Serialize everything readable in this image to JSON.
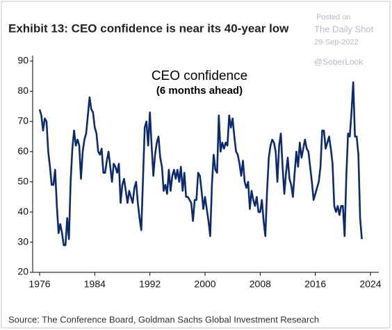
{
  "chart_data": {
    "type": "line",
    "title": "Exhibit 13: CEO confidence is near its 40-year low",
    "annotations": [
      "CEO confidence",
      "(6 months ahead)"
    ],
    "source": "Source: The Conference Board, Goldman Sachs Global Investment Research",
    "watermark": [
      "Posted on",
      "The Daily Shot",
      "29-Sep-2022",
      "@SoberLook"
    ],
    "color": "#0c2a6e",
    "xlim": [
      1976,
      2024
    ],
    "xticks": [
      1976,
      1984,
      1992,
      2000,
      2008,
      2016,
      2024
    ],
    "ylim": [
      20,
      90
    ],
    "yticks": [
      20,
      30,
      40,
      50,
      60,
      70,
      80,
      90
    ],
    "x": [
      1976,
      1976.25,
      1976.5,
      1976.75,
      1977,
      1977.25,
      1977.5,
      1977.75,
      1978,
      1978.25,
      1978.5,
      1978.75,
      1979,
      1979.25,
      1979.5,
      1979.75,
      1980,
      1980.25,
      1980.5,
      1980.75,
      1981,
      1981.25,
      1981.5,
      1981.75,
      1982,
      1982.25,
      1982.5,
      1982.75,
      1983,
      1983.25,
      1983.5,
      1983.75,
      1984,
      1984.25,
      1984.5,
      1984.75,
      1985,
      1985.25,
      1985.5,
      1985.75,
      1986,
      1986.25,
      1986.5,
      1986.75,
      1987,
      1987.25,
      1987.5,
      1987.75,
      1988,
      1988.25,
      1988.5,
      1988.75,
      1989,
      1989.25,
      1989.5,
      1989.75,
      1990,
      1990.25,
      1990.5,
      1990.75,
      1991,
      1991.25,
      1991.5,
      1991.75,
      1992,
      1992.25,
      1992.5,
      1992.75,
      1993,
      1993.25,
      1993.5,
      1993.75,
      1994,
      1994.25,
      1994.5,
      1994.75,
      1995,
      1995.25,
      1995.5,
      1995.75,
      1996,
      1996.25,
      1996.5,
      1996.75,
      1997,
      1997.25,
      1997.5,
      1997.75,
      1998,
      1998.25,
      1998.5,
      1998.75,
      1999,
      1999.25,
      1999.5,
      1999.75,
      2000,
      2000.25,
      2000.5,
      2000.75,
      2001,
      2001.25,
      2001.5,
      2001.75,
      2002,
      2002.25,
      2002.5,
      2002.75,
      2003,
      2003.25,
      2003.5,
      2003.75,
      2004,
      2004.25,
      2004.5,
      2004.75,
      2005,
      2005.25,
      2005.5,
      2005.75,
      2006,
      2006.25,
      2006.5,
      2006.75,
      2007,
      2007.25,
      2007.5,
      2007.75,
      2008,
      2008.25,
      2008.5,
      2008.75,
      2009,
      2009.25,
      2009.5,
      2009.75,
      2010,
      2010.25,
      2010.5,
      2010.75,
      2011,
      2011.25,
      2011.5,
      2011.75,
      2012,
      2012.25,
      2012.5,
      2012.75,
      2013,
      2013.25,
      2013.5,
      2013.75,
      2014,
      2014.25,
      2014.5,
      2014.75,
      2015,
      2015.25,
      2015.5,
      2015.75,
      2016,
      2016.25,
      2016.5,
      2016.75,
      2017,
      2017.25,
      2017.5,
      2017.75,
      2018,
      2018.25,
      2018.5,
      2018.75,
      2019,
      2019.25,
      2019.5,
      2019.75,
      2020,
      2020.25,
      2020.5,
      2020.75,
      2021,
      2021.25,
      2021.5,
      2021.75,
      2022,
      2022.25,
      2022.5,
      2022.75
    ],
    "values": [
      74,
      72,
      67,
      71,
      70,
      60,
      55,
      49,
      49,
      54,
      42,
      33,
      36,
      33,
      29,
      29,
      38,
      31,
      50,
      61,
      67,
      62,
      64,
      62,
      51,
      60,
      64,
      66,
      72,
      78,
      74,
      73,
      68,
      66,
      60,
      59,
      61,
      53,
      53,
      57,
      60,
      55,
      50,
      56,
      55,
      53,
      56,
      43,
      49,
      51,
      47,
      43,
      47,
      45,
      43,
      48,
      50,
      43,
      38,
      34,
      51,
      68,
      70,
      62,
      73,
      62,
      52,
      59,
      63,
      65,
      58,
      55,
      47,
      49,
      46,
      54,
      47,
      52,
      54,
      51,
      54,
      50,
      55,
      47,
      53,
      45,
      45,
      44,
      43,
      37,
      44,
      44,
      53,
      52,
      47,
      41,
      45,
      41,
      37,
      32,
      49,
      59,
      54,
      53,
      72,
      60,
      63,
      61,
      63,
      62,
      72,
      68,
      71,
      65,
      60,
      59,
      56,
      52,
      57,
      50,
      48,
      50,
      41,
      47,
      44,
      42,
      45,
      40,
      40,
      44,
      37,
      32,
      47,
      58,
      62,
      64,
      63,
      60,
      50,
      62,
      66,
      55,
      46,
      53,
      58,
      51,
      49,
      45,
      53,
      60,
      55,
      63,
      58,
      61,
      64,
      61,
      60,
      55,
      50,
      44,
      46,
      48,
      50,
      55,
      67,
      67,
      61,
      63,
      65,
      61,
      56,
      42,
      40,
      42,
      39,
      42,
      42,
      32,
      52,
      66,
      65,
      73,
      83,
      65,
      65,
      59,
      38,
      31
    ]
  }
}
